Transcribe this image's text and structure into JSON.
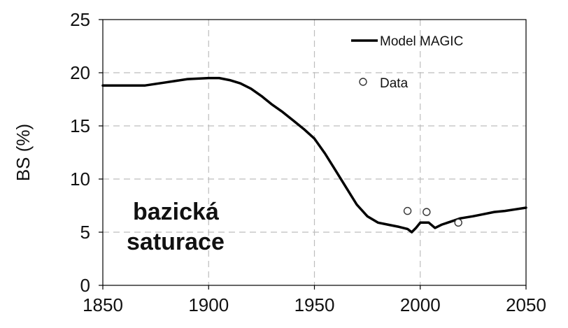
{
  "chart_data": {
    "type": "line",
    "title": "",
    "xlabel": "",
    "ylabel": "BS (%)",
    "xlim": [
      1850,
      2050
    ],
    "ylim": [
      0,
      25
    ],
    "x_ticks": [
      1850,
      1900,
      1950,
      2000,
      2050
    ],
    "y_ticks": [
      0,
      5,
      10,
      15,
      20,
      25
    ],
    "grid": true,
    "legend_position": "top-right",
    "annotation": [
      "bazická",
      "saturace"
    ],
    "series": [
      {
        "name": "Model MAGIC",
        "kind": "line",
        "color": "#000000",
        "x": [
          1850,
          1860,
          1870,
          1880,
          1890,
          1900,
          1905,
          1910,
          1915,
          1920,
          1925,
          1930,
          1935,
          1940,
          1945,
          1950,
          1955,
          1960,
          1965,
          1970,
          1975,
          1980,
          1985,
          1990,
          1994,
          1996,
          1998,
          2000,
          2004,
          2007,
          2010,
          2013,
          2016,
          2019,
          2025,
          2030,
          2035,
          2040,
          2045,
          2050
        ],
        "y": [
          18.8,
          18.8,
          18.8,
          19.1,
          19.4,
          19.5,
          19.5,
          19.3,
          19.0,
          18.5,
          17.8,
          17.0,
          16.3,
          15.5,
          14.7,
          13.8,
          12.4,
          10.8,
          9.2,
          7.6,
          6.5,
          5.9,
          5.7,
          5.5,
          5.3,
          5.0,
          5.4,
          5.9,
          5.9,
          5.4,
          5.7,
          5.9,
          6.1,
          6.3,
          6.5,
          6.7,
          6.9,
          7.0,
          7.15,
          7.3
        ]
      },
      {
        "name": "Data",
        "kind": "scatter",
        "marker": "open-circle",
        "color": "#000000",
        "x": [
          1994,
          2003,
          2018
        ],
        "y": [
          7.0,
          6.9,
          5.9
        ]
      }
    ]
  }
}
